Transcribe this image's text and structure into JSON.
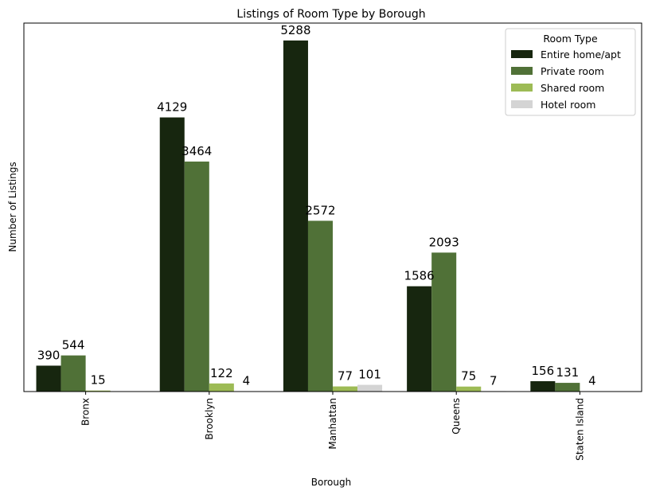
{
  "chart_data": {
    "type": "bar",
    "title": "Listings of Room Type by Borough",
    "xlabel": "Borough",
    "ylabel": "Number of Listings",
    "categories": [
      "Bronx",
      "Brooklyn",
      "Manhattan",
      "Queens",
      "Staten Island"
    ],
    "series": [
      {
        "name": "Entire home/apt",
        "color": "#17260f",
        "values": [
          390,
          4129,
          5288,
          1586,
          156
        ],
        "labels": [
          "390",
          "4129",
          "5288",
          "1586",
          "156"
        ]
      },
      {
        "name": "Private room",
        "color": "#507137",
        "values": [
          544,
          3464,
          2572,
          2093,
          131
        ],
        "labels": [
          "544",
          "3464",
          "2572",
          "2093",
          "131"
        ]
      },
      {
        "name": "Shared room",
        "color": "#9dbb55",
        "values": [
          15,
          122,
          77,
          75,
          4
        ],
        "labels": [
          "15",
          "122",
          "77",
          "75",
          "4"
        ]
      },
      {
        "name": "Hotel room",
        "color": "#d4d4d4",
        "values": [
          0,
          4,
          101,
          7,
          0
        ],
        "labels": [
          "",
          "4",
          "101",
          "7",
          ""
        ]
      }
    ],
    "ylim": [
      0,
      5550
    ],
    "show_y_ticks": false,
    "grid": false,
    "legend": {
      "title": "Room Type",
      "position": "top-right"
    }
  }
}
